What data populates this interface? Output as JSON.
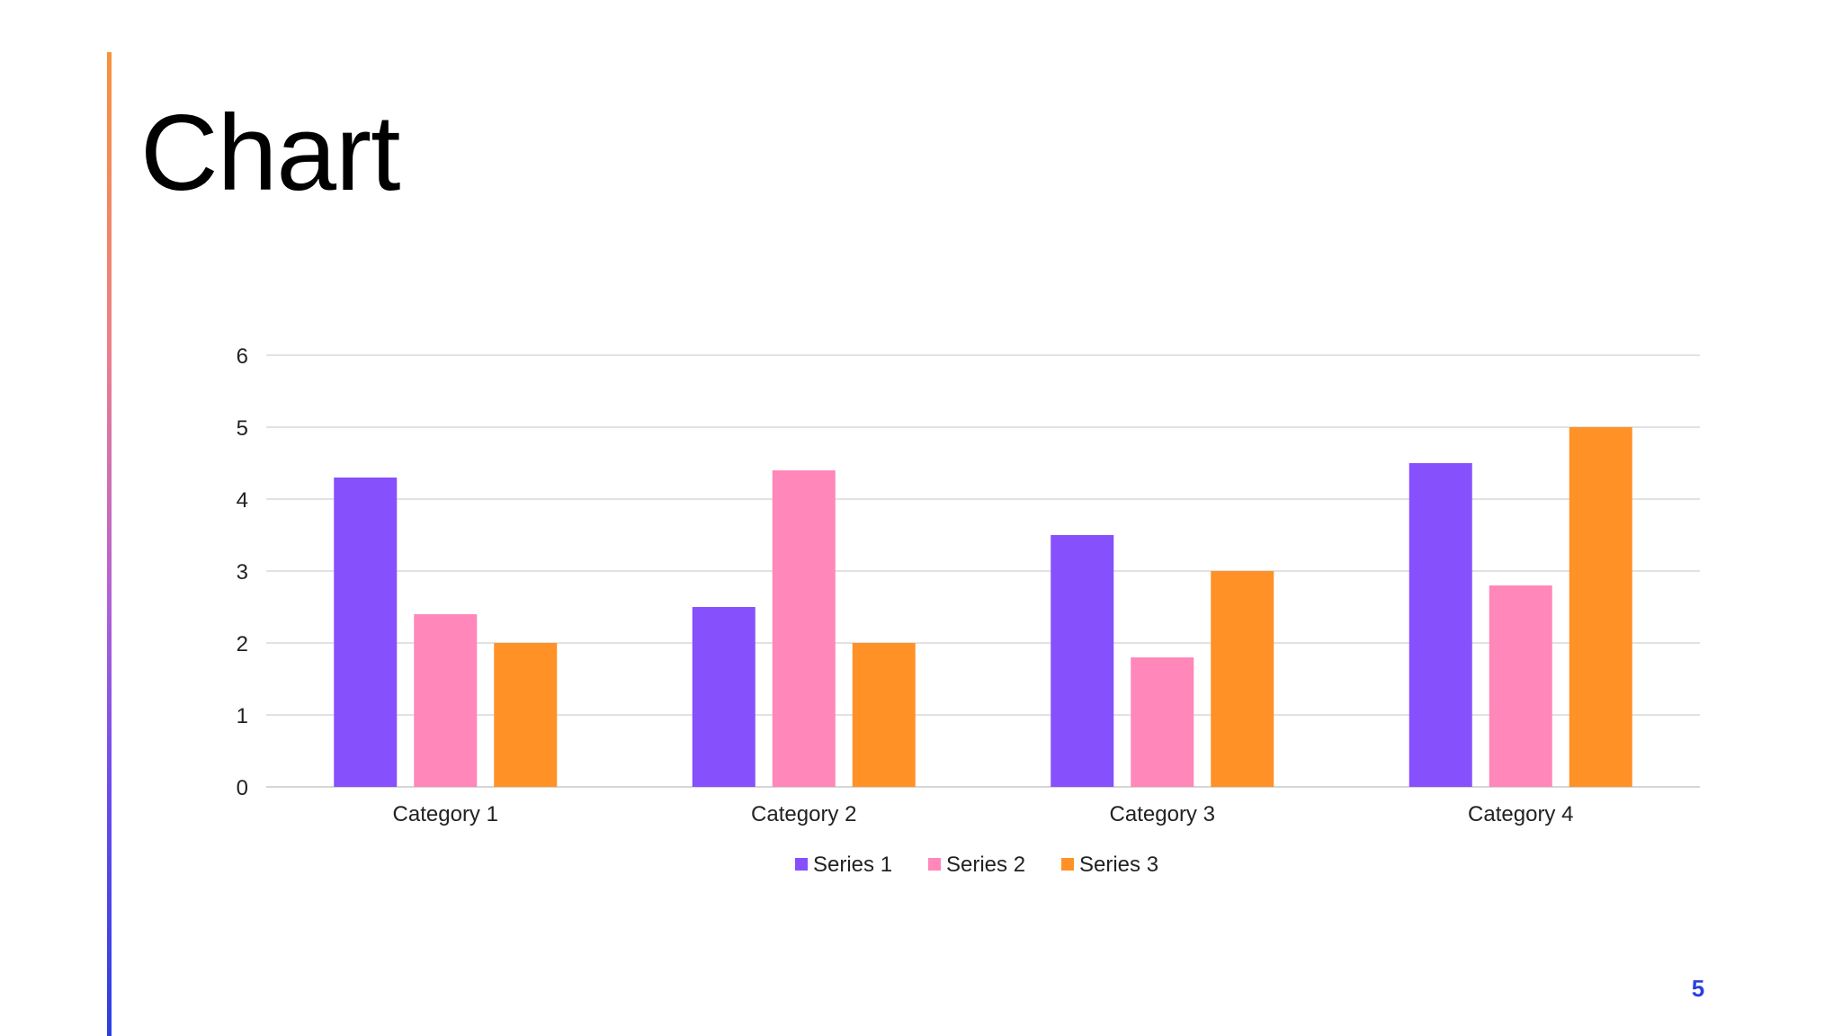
{
  "slide": {
    "title": "Chart",
    "page_number": "5",
    "accent_colors": [
      "#f7923a",
      "#2b3fe0"
    ]
  },
  "chart_data": {
    "type": "bar",
    "title": "",
    "xlabel": "",
    "ylabel": "",
    "ylim": [
      0,
      6
    ],
    "yticks": [
      0,
      1,
      2,
      3,
      4,
      5,
      6
    ],
    "grid": true,
    "legend_position": "bottom",
    "categories": [
      "Category 1",
      "Category 2",
      "Category 3",
      "Category 4"
    ],
    "series": [
      {
        "name": "Series 1",
        "color": "#8650fc",
        "values": [
          4.3,
          2.5,
          3.5,
          4.5
        ]
      },
      {
        "name": "Series 2",
        "color": "#ff87b9",
        "values": [
          2.4,
          4.4,
          1.8,
          2.8
        ]
      },
      {
        "name": "Series 3",
        "color": "#ff9127",
        "values": [
          2,
          2,
          3,
          5
        ]
      }
    ]
  }
}
